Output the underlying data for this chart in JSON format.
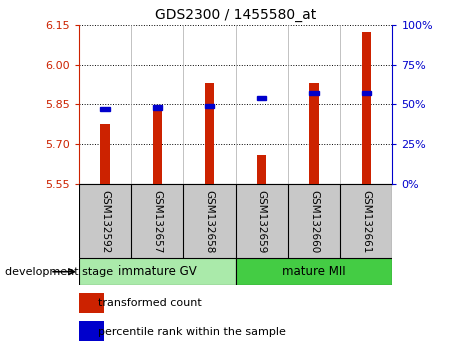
{
  "title": "GDS2300 / 1455580_at",
  "samples": [
    "GSM132592",
    "GSM132657",
    "GSM132658",
    "GSM132659",
    "GSM132660",
    "GSM132661"
  ],
  "bar_values": [
    5.775,
    5.838,
    5.93,
    5.66,
    5.932,
    6.123
  ],
  "percentile_values": [
    47,
    48,
    49,
    54,
    57,
    57
  ],
  "ymin": 5.55,
  "ymax": 6.15,
  "yticks": [
    5.55,
    5.7,
    5.85,
    6.0,
    6.15
  ],
  "right_yticks": [
    0,
    25,
    50,
    75,
    100
  ],
  "bar_color": "#cc2200",
  "percentile_color": "#0000cc",
  "background_plot": "#ffffff",
  "background_tick": "#c8c8c8",
  "group1_label": "immature GV",
  "group2_label": "mature MII",
  "group1_color": "#aaeaaa",
  "group2_color": "#44cc44",
  "group1_indices": [
    0,
    1,
    2
  ],
  "group2_indices": [
    3,
    4,
    5
  ],
  "stage_label": "development stage",
  "legend_bar_label": "transformed count",
  "legend_pct_label": "percentile rank within the sample"
}
